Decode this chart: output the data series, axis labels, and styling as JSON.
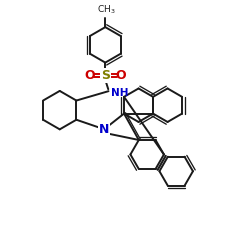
{
  "bg_color": "#ffffff",
  "bond_color": "#1a1a1a",
  "n_color": "#0000cc",
  "o_color": "#cc0000",
  "s_color": "#808000",
  "text_color": "#1a1a1a",
  "lw": 1.4,
  "lw_inner": 0.95,
  "figsize": [
    2.5,
    2.5
  ],
  "dpi": 100,
  "xlim": [
    0,
    10
  ],
  "ylim": [
    0,
    10
  ]
}
